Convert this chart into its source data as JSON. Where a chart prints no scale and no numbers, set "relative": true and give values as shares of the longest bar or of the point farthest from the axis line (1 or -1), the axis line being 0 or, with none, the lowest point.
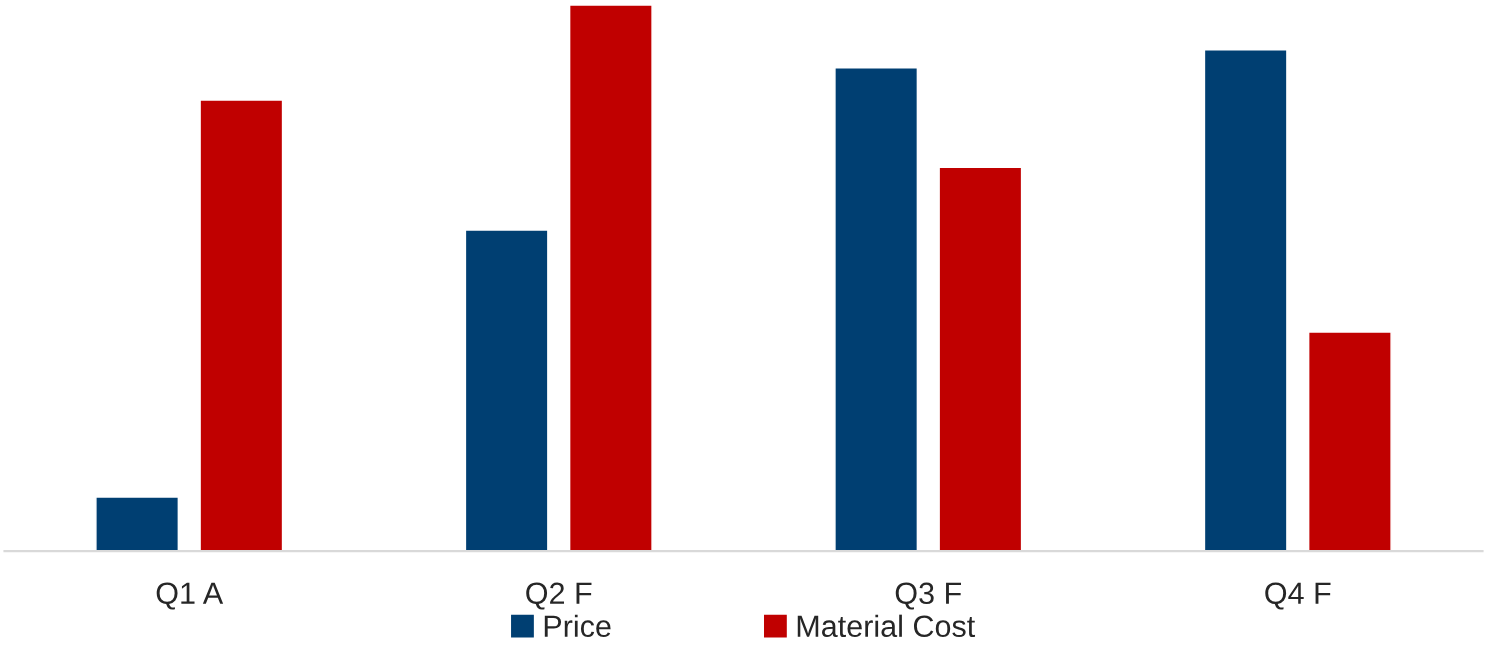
{
  "chart_data": {
    "type": "bar",
    "relative": true,
    "categories": [
      "Q1 A",
      "Q2 F",
      "Q3 F",
      "Q4 F"
    ],
    "series": [
      {
        "name": "Price",
        "color": "#003f72",
        "values": [
          0.099,
          0.588,
          0.885,
          0.918
        ]
      },
      {
        "name": "Material Cost",
        "color": "#c00000",
        "values": [
          0.826,
          1,
          0.703,
          0.401
        ]
      }
    ],
    "legend": "bottom",
    "grid": false
  }
}
